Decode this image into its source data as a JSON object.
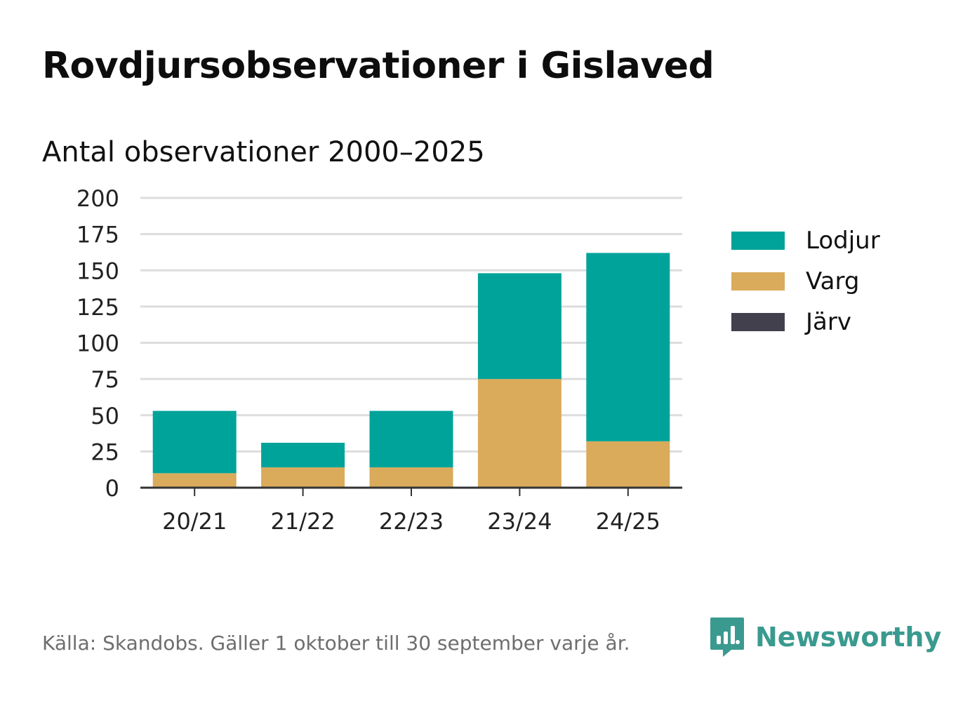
{
  "title": "Rovdjursobservationer i Gislaved",
  "subtitle": "Antal observationer 2000–2025",
  "source": "Källa: Skandobs. Gäller 1 oktober till 30 september varje år.",
  "brand": "Newsworthy",
  "colors": {
    "lodjur": "#00a39a",
    "varg": "#d9ab5b",
    "jarv": "#42404d",
    "grid": "#dddddd",
    "axis": "#333333",
    "brand": "#3a9a8f"
  },
  "legend": [
    {
      "label": "Lodjur",
      "color": "#00a39a"
    },
    {
      "label": "Varg",
      "color": "#d9ab5b"
    },
    {
      "label": "Järv",
      "color": "#42404d"
    }
  ],
  "chart_data": {
    "type": "bar",
    "stacked": true,
    "title": "Rovdjursobservationer i Gislaved",
    "subtitle": "Antal observationer 2000–2025",
    "categories": [
      "20/21",
      "21/22",
      "22/23",
      "23/24",
      "24/25"
    ],
    "series": [
      {
        "name": "Varg",
        "color": "#d9ab5b",
        "values": [
          10,
          14,
          14,
          75,
          32
        ]
      },
      {
        "name": "Lodjur",
        "color": "#00a39a",
        "values": [
          43,
          17,
          39,
          73,
          130
        ]
      },
      {
        "name": "Järv",
        "color": "#42404d",
        "values": [
          0,
          0,
          0,
          0,
          0
        ]
      }
    ],
    "ylim": [
      0,
      200
    ],
    "yticks": [
      0,
      25,
      50,
      75,
      100,
      125,
      150,
      175,
      200
    ],
    "grid": true,
    "legend_position": "right",
    "xlabel": "",
    "ylabel": ""
  }
}
